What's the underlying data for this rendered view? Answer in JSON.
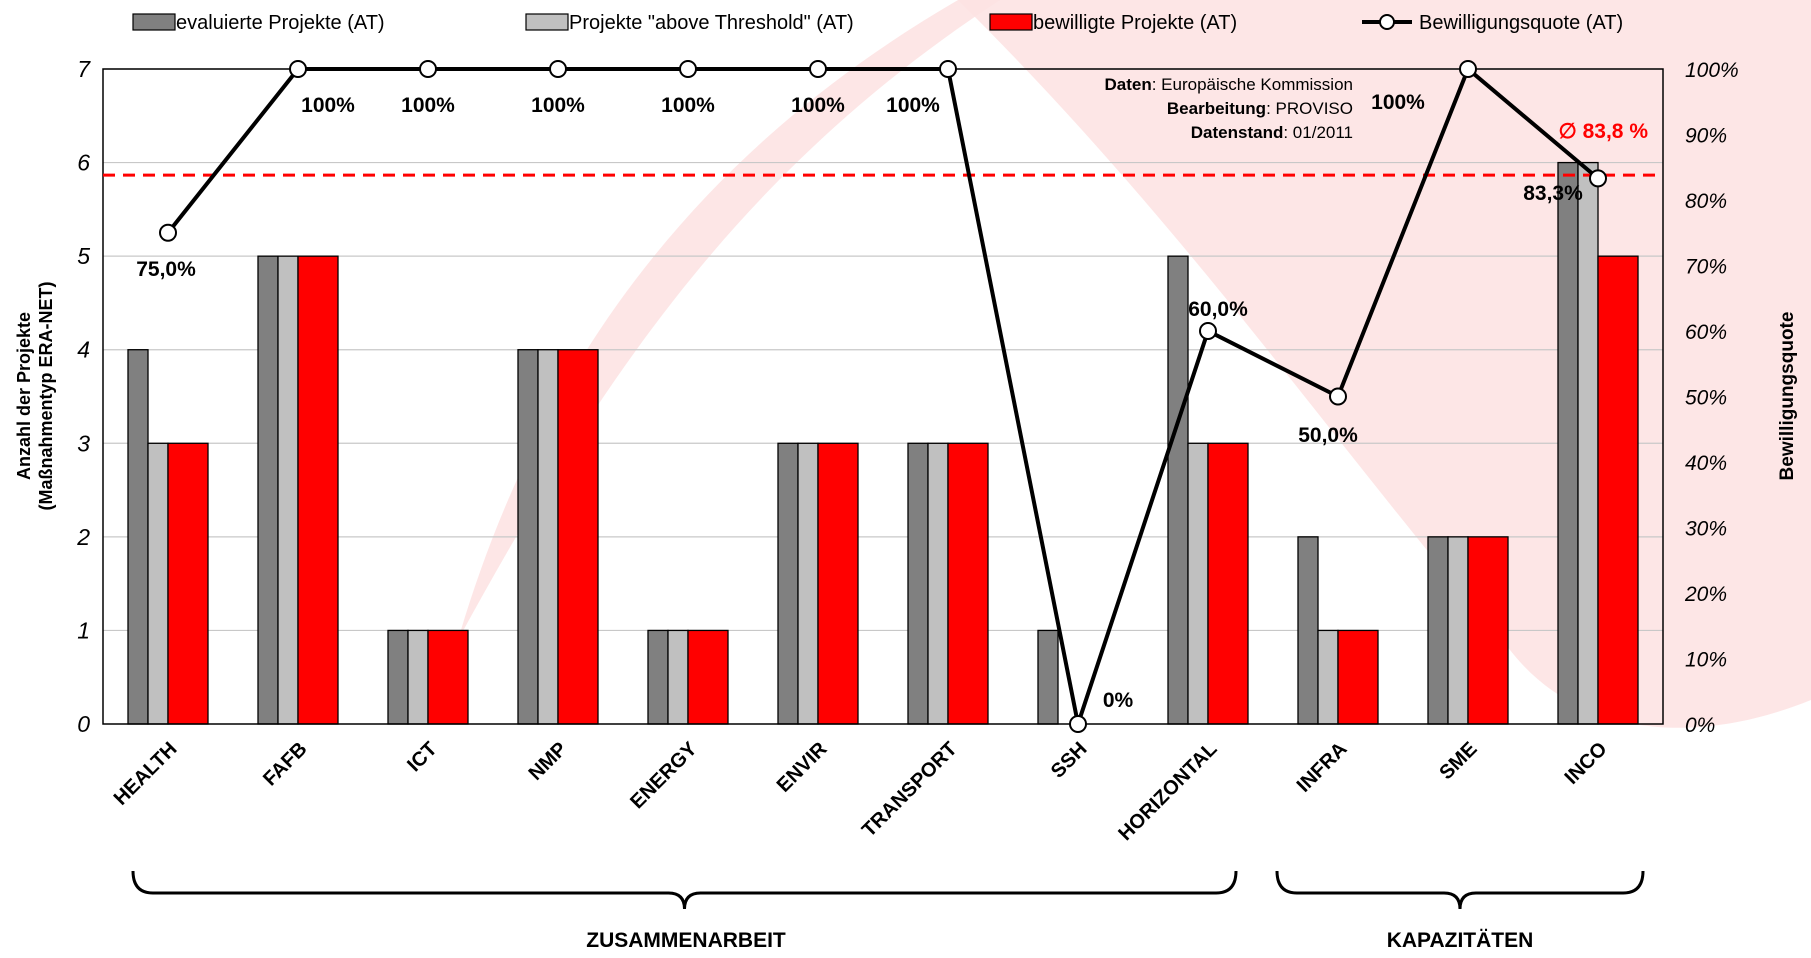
{
  "chart_data": {
    "type": "bar",
    "categories": [
      "HEALTH",
      "FAFB",
      "ICT",
      "NMP",
      "ENERGY",
      "ENVIR",
      "TRANSPORT",
      "SSH",
      "HORIZONTAL",
      "INFRA",
      "SME",
      "INCO"
    ],
    "series": [
      {
        "name": "evaluierte Projekte (AT)",
        "type": "bar",
        "color": "#808080",
        "values": [
          4,
          5,
          1,
          4,
          1,
          3,
          3,
          1,
          5,
          2,
          2,
          6
        ]
      },
      {
        "name": "Projekte \"above Threshold\" (AT)",
        "type": "bar",
        "color": "#c0c0c0",
        "values": [
          3,
          5,
          1,
          4,
          1,
          3,
          3,
          0,
          3,
          1,
          2,
          6
        ]
      },
      {
        "name": "bewilligte Projekte (AT)",
        "type": "bar",
        "color": "#ff0000",
        "values": [
          3,
          5,
          1,
          4,
          1,
          3,
          3,
          0,
          3,
          1,
          2,
          5
        ]
      },
      {
        "name": "Bewilligungsquote (AT)",
        "type": "line",
        "axis": "right",
        "color": "#000000",
        "values": [
          75.0,
          100,
          100,
          100,
          100,
          100,
          100,
          0,
          60.0,
          50.0,
          100,
          83.3
        ]
      }
    ],
    "rate_labels": [
      "75,0%",
      "100%",
      "100%",
      "100%",
      "100%",
      "100%",
      "100%",
      "0%",
      "60,0%",
      "50,0%",
      "100%",
      "83,3%"
    ],
    "average": {
      "value": 83.8,
      "label": "∅ 83,8 %",
      "color": "#ff0000"
    },
    "ylabel_left": [
      "Anzahl der Projekte",
      "(Maßnahmentyp ERA-NET)"
    ],
    "ylabel_right": "Bewilligungsquote",
    "ylim_left": [
      0,
      7
    ],
    "ylim_right": [
      0,
      100
    ],
    "yticks_left": [
      "0",
      "1",
      "2",
      "3",
      "4",
      "5",
      "6",
      "7"
    ],
    "yticks_right": [
      "0%",
      "10%",
      "20%",
      "30%",
      "40%",
      "50%",
      "60%",
      "70%",
      "80%",
      "90%",
      "100%"
    ],
    "legend_position": "top",
    "grid": true,
    "source_note": [
      {
        "key": "Daten",
        "value": ": Europäische Kommission"
      },
      {
        "key": "Bearbeitung",
        "value": ": PROVISO"
      },
      {
        "key": "Datenstand",
        "value": ": 01/2011"
      }
    ],
    "groups": [
      {
        "label": "ZUSAMMENARBEIT",
        "from": "HEALTH",
        "to": "HORIZONTAL"
      },
      {
        "label": "KAPAZITÄTEN",
        "from": "INFRA",
        "to": "INCO"
      }
    ],
    "background_color": "#fde2e2"
  }
}
